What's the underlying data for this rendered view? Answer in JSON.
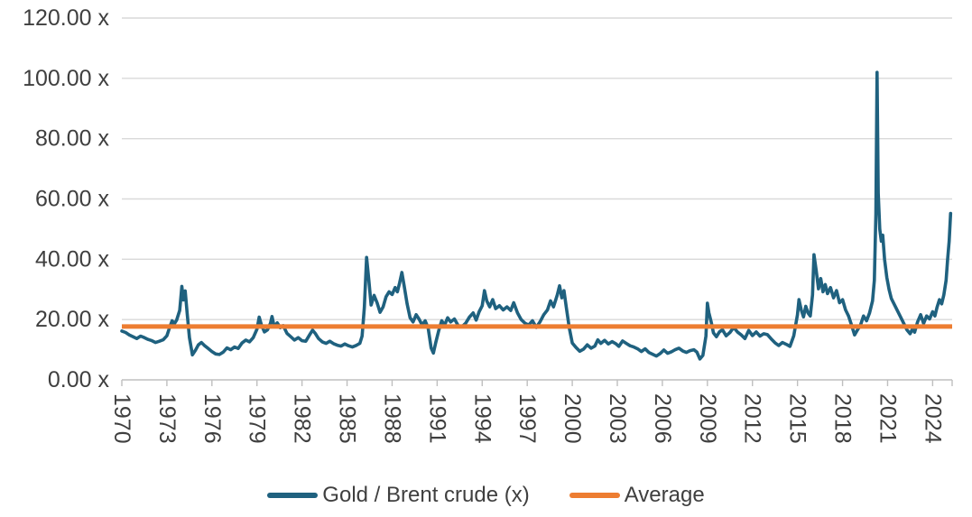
{
  "chart_data": {
    "type": "line",
    "title": "",
    "xlabel": "",
    "ylabel": "",
    "grid": true,
    "legend_position": "bottom",
    "colors": {
      "ratio_line": "#1F617F",
      "average_line": "#ED7D31",
      "gridline": "#D9D9D9",
      "axis": "#BFBFBF",
      "tick_text": "#3F3F3F"
    },
    "x_axis": {
      "range": [
        1970,
        2025.3
      ],
      "tick_years": [
        1970,
        1973,
        1976,
        1979,
        1982,
        1985,
        1988,
        1991,
        1994,
        1997,
        2000,
        2003,
        2006,
        2009,
        2012,
        2015,
        2018,
        2021,
        2024
      ],
      "tick_labels": [
        "1970",
        "1973",
        "1976",
        "1979",
        "1982",
        "1985",
        "1988",
        "1991",
        "1994",
        "1997",
        "2000",
        "2003",
        "2006",
        "2009",
        "2012",
        "2015",
        "2018",
        "2021",
        "2024"
      ]
    },
    "y_axis": {
      "range": [
        0,
        120
      ],
      "tick_values": [
        0,
        20,
        40,
        60,
        80,
        100,
        120
      ],
      "tick_labels": [
        "0.00 x",
        "20.00 x",
        "40.00 x",
        "60.00 x",
        "80.00 x",
        "100.00 x",
        "120.00 x"
      ]
    },
    "series": [
      {
        "name": "Gold / Brent crude (x)",
        "color": "#1F617F",
        "points": [
          [
            1970,
            16.2
          ],
          [
            1970.25,
            15.7
          ],
          [
            1970.5,
            14.9
          ],
          [
            1970.75,
            14.3
          ],
          [
            1971,
            13.7
          ],
          [
            1971.25,
            14.5
          ],
          [
            1971.5,
            14
          ],
          [
            1971.75,
            13.4
          ],
          [
            1972,
            13
          ],
          [
            1972.25,
            12.4
          ],
          [
            1972.5,
            12.8
          ],
          [
            1972.75,
            13.3
          ],
          [
            1973,
            14.6
          ],
          [
            1973.2,
            17.6
          ],
          [
            1973.35,
            19.6
          ],
          [
            1973.5,
            18.6
          ],
          [
            1973.65,
            19.8
          ],
          [
            1973.85,
            23
          ],
          [
            1974,
            31
          ],
          [
            1974.1,
            26.5
          ],
          [
            1974.22,
            29.5
          ],
          [
            1974.35,
            22
          ],
          [
            1974.5,
            14
          ],
          [
            1974.7,
            8.3
          ],
          [
            1974.9,
            9.8
          ],
          [
            1975.1,
            11.6
          ],
          [
            1975.3,
            12.4
          ],
          [
            1975.5,
            11.4
          ],
          [
            1975.75,
            10.4
          ],
          [
            1976,
            9.4
          ],
          [
            1976.25,
            8.6
          ],
          [
            1976.5,
            8.4
          ],
          [
            1976.75,
            9.2
          ],
          [
            1977,
            10.6
          ],
          [
            1977.25,
            10
          ],
          [
            1977.5,
            10.9
          ],
          [
            1977.75,
            10.4
          ],
          [
            1978,
            12.2
          ],
          [
            1978.25,
            13.2
          ],
          [
            1978.5,
            12.6
          ],
          [
            1978.75,
            14
          ],
          [
            1979,
            16.8
          ],
          [
            1979.15,
            20.8
          ],
          [
            1979.3,
            18.2
          ],
          [
            1979.5,
            15.9
          ],
          [
            1979.7,
            16.6
          ],
          [
            1979.9,
            18.8
          ],
          [
            1980,
            21
          ],
          [
            1980.15,
            17.6
          ],
          [
            1980.35,
            18.9
          ],
          [
            1980.55,
            17.3
          ],
          [
            1980.75,
            18
          ],
          [
            1981,
            15.4
          ],
          [
            1981.25,
            14.3
          ],
          [
            1981.5,
            13.2
          ],
          [
            1981.75,
            14
          ],
          [
            1982,
            13
          ],
          [
            1982.25,
            12.8
          ],
          [
            1982.5,
            14.9
          ],
          [
            1982.7,
            16.5
          ],
          [
            1982.9,
            15.3
          ],
          [
            1983.1,
            13.7
          ],
          [
            1983.35,
            12.6
          ],
          [
            1983.6,
            12.1
          ],
          [
            1983.85,
            12.8
          ],
          [
            1984.1,
            12
          ],
          [
            1984.35,
            11.5
          ],
          [
            1984.6,
            11.2
          ],
          [
            1984.85,
            11.9
          ],
          [
            1985.1,
            11.3
          ],
          [
            1985.35,
            10.9
          ],
          [
            1985.6,
            11.4
          ],
          [
            1985.85,
            12.1
          ],
          [
            1986,
            14.5
          ],
          [
            1986.15,
            24
          ],
          [
            1986.3,
            40.6
          ],
          [
            1986.45,
            33
          ],
          [
            1986.6,
            24.8
          ],
          [
            1986.8,
            28
          ],
          [
            1987,
            25.6
          ],
          [
            1987.2,
            22.4
          ],
          [
            1987.4,
            24.2
          ],
          [
            1987.6,
            27.6
          ],
          [
            1987.8,
            29.2
          ],
          [
            1988,
            28.3
          ],
          [
            1988.2,
            30.6
          ],
          [
            1988.35,
            29.2
          ],
          [
            1988.5,
            32.2
          ],
          [
            1988.65,
            35.6
          ],
          [
            1988.8,
            31.2
          ],
          [
            1989,
            25.2
          ],
          [
            1989.2,
            20.6
          ],
          [
            1989.4,
            19.2
          ],
          [
            1989.6,
            21.6
          ],
          [
            1989.8,
            20.1
          ],
          [
            1990,
            18.2
          ],
          [
            1990.2,
            19.6
          ],
          [
            1990.4,
            17.2
          ],
          [
            1990.6,
            10.6
          ],
          [
            1990.75,
            8.9
          ],
          [
            1990.9,
            12.2
          ],
          [
            1991.1,
            16.2
          ],
          [
            1991.3,
            19.6
          ],
          [
            1991.5,
            18.2
          ],
          [
            1991.7,
            20.6
          ],
          [
            1991.9,
            19.2
          ],
          [
            1992.15,
            20.2
          ],
          [
            1992.4,
            18
          ],
          [
            1992.65,
            17.6
          ],
          [
            1992.9,
            18.8
          ],
          [
            1993.15,
            20.8
          ],
          [
            1993.4,
            22.2
          ],
          [
            1993.6,
            19.8
          ],
          [
            1993.8,
            22.6
          ],
          [
            1994,
            24.6
          ],
          [
            1994.15,
            29.6
          ],
          [
            1994.3,
            26.2
          ],
          [
            1994.5,
            24.2
          ],
          [
            1994.7,
            26.6
          ],
          [
            1994.9,
            23.6
          ],
          [
            1995.15,
            24.6
          ],
          [
            1995.4,
            23.2
          ],
          [
            1995.65,
            24.2
          ],
          [
            1995.9,
            23
          ],
          [
            1996.1,
            25.6
          ],
          [
            1996.35,
            22.2
          ],
          [
            1996.6,
            20
          ],
          [
            1996.85,
            18.8
          ],
          [
            1997.1,
            18.2
          ],
          [
            1997.35,
            19.6
          ],
          [
            1997.6,
            17.4
          ],
          [
            1997.85,
            19.2
          ],
          [
            1998.1,
            21.6
          ],
          [
            1998.35,
            23.2
          ],
          [
            1998.55,
            26.2
          ],
          [
            1998.75,
            24.2
          ],
          [
            1999,
            28.2
          ],
          [
            1999.15,
            31.2
          ],
          [
            1999.3,
            27.2
          ],
          [
            1999.45,
            29.6
          ],
          [
            1999.6,
            24.2
          ],
          [
            1999.8,
            17.2
          ],
          [
            2000,
            12.2
          ],
          [
            2000.25,
            10.7
          ],
          [
            2000.5,
            9.5
          ],
          [
            2000.75,
            10.2
          ],
          [
            2001,
            11.6
          ],
          [
            2001.25,
            10.5
          ],
          [
            2001.5,
            11.2
          ],
          [
            2001.7,
            13.3
          ],
          [
            2001.9,
            12.1
          ],
          [
            2002.15,
            13.1
          ],
          [
            2002.4,
            11.9
          ],
          [
            2002.65,
            12.7
          ],
          [
            2002.9,
            12
          ],
          [
            2003.1,
            11.1
          ],
          [
            2003.35,
            12.9
          ],
          [
            2003.6,
            12.1
          ],
          [
            2003.85,
            11.3
          ],
          [
            2004.1,
            10.9
          ],
          [
            2004.35,
            10.3
          ],
          [
            2004.6,
            9.4
          ],
          [
            2004.85,
            10.3
          ],
          [
            2005.1,
            9.1
          ],
          [
            2005.35,
            8.5
          ],
          [
            2005.6,
            7.9
          ],
          [
            2005.85,
            8.7
          ],
          [
            2006.1,
            9.9
          ],
          [
            2006.35,
            8.8
          ],
          [
            2006.6,
            9.3
          ],
          [
            2006.85,
            10
          ],
          [
            2007.1,
            10.5
          ],
          [
            2007.35,
            9.6
          ],
          [
            2007.6,
            9.1
          ],
          [
            2007.85,
            9.7
          ],
          [
            2008.1,
            10
          ],
          [
            2008.3,
            9.2
          ],
          [
            2008.5,
            6.9
          ],
          [
            2008.7,
            8.1
          ],
          [
            2008.9,
            14.5
          ],
          [
            2009,
            25.4
          ],
          [
            2009.1,
            22.2
          ],
          [
            2009.25,
            19.2
          ],
          [
            2009.4,
            15.6
          ],
          [
            2009.6,
            14.3
          ],
          [
            2009.8,
            15.9
          ],
          [
            2010,
            16.6
          ],
          [
            2010.25,
            14.6
          ],
          [
            2010.5,
            15.7
          ],
          [
            2010.75,
            17.4
          ],
          [
            2011,
            15.9
          ],
          [
            2011.25,
            14.9
          ],
          [
            2011.5,
            13.7
          ],
          [
            2011.75,
            16.4
          ],
          [
            2012,
            14.7
          ],
          [
            2012.25,
            15.9
          ],
          [
            2012.5,
            14.5
          ],
          [
            2012.75,
            15.3
          ],
          [
            2013,
            15
          ],
          [
            2013.25,
            13.6
          ],
          [
            2013.5,
            12.3
          ],
          [
            2013.75,
            11.4
          ],
          [
            2014,
            12.4
          ],
          [
            2014.25,
            11.8
          ],
          [
            2014.5,
            11.1
          ],
          [
            2014.75,
            14.6
          ],
          [
            2015,
            21.6
          ],
          [
            2015.1,
            26.6
          ],
          [
            2015.25,
            23.2
          ],
          [
            2015.4,
            20.9
          ],
          [
            2015.55,
            24.4
          ],
          [
            2015.7,
            22.2
          ],
          [
            2015.85,
            21.2
          ],
          [
            2016,
            28.2
          ],
          [
            2016.1,
            41.5
          ],
          [
            2016.25,
            36.2
          ],
          [
            2016.4,
            30.2
          ],
          [
            2016.55,
            33.6
          ],
          [
            2016.7,
            29.2
          ],
          [
            2016.85,
            31.6
          ],
          [
            2017,
            28.6
          ],
          [
            2017.2,
            30.6
          ],
          [
            2017.4,
            27.2
          ],
          [
            2017.6,
            29.6
          ],
          [
            2017.8,
            25.6
          ],
          [
            2018,
            26.6
          ],
          [
            2018.2,
            23.2
          ],
          [
            2018.4,
            21.2
          ],
          [
            2018.6,
            18.2
          ],
          [
            2018.8,
            14.9
          ],
          [
            2019,
            16.6
          ],
          [
            2019.2,
            18.2
          ],
          [
            2019.4,
            21.2
          ],
          [
            2019.6,
            19.6
          ],
          [
            2019.8,
            22.2
          ],
          [
            2020,
            26.2
          ],
          [
            2020.12,
            33
          ],
          [
            2020.22,
            55
          ],
          [
            2020.3,
            102
          ],
          [
            2020.38,
            62
          ],
          [
            2020.48,
            50
          ],
          [
            2020.58,
            46
          ],
          [
            2020.68,
            48
          ],
          [
            2020.8,
            40
          ],
          [
            2020.95,
            34
          ],
          [
            2021.1,
            30
          ],
          [
            2021.25,
            27
          ],
          [
            2021.4,
            25.5
          ],
          [
            2021.55,
            24
          ],
          [
            2021.7,
            22.5
          ],
          [
            2021.85,
            21
          ],
          [
            2022,
            19.5
          ],
          [
            2022.15,
            18
          ],
          [
            2022.3,
            16.5
          ],
          [
            2022.5,
            15.3
          ],
          [
            2022.65,
            16.8
          ],
          [
            2022.8,
            15.8
          ],
          [
            2023,
            19.2
          ],
          [
            2023.2,
            21.6
          ],
          [
            2023.4,
            18.7
          ],
          [
            2023.6,
            21.2
          ],
          [
            2023.8,
            20.2
          ],
          [
            2024,
            22.6
          ],
          [
            2024.15,
            21.2
          ],
          [
            2024.3,
            24.2
          ],
          [
            2024.45,
            26.6
          ],
          [
            2024.6,
            25.2
          ],
          [
            2024.75,
            28.2
          ],
          [
            2024.9,
            33
          ],
          [
            2025,
            40
          ],
          [
            2025.1,
            46
          ],
          [
            2025.2,
            55.2
          ]
        ]
      },
      {
        "name": "Average",
        "color": "#ED7D31",
        "constant_value": 17.7
      }
    ]
  },
  "legend": {
    "items": [
      {
        "label": "Gold / Brent crude (x)"
      },
      {
        "label": "Average"
      }
    ]
  }
}
